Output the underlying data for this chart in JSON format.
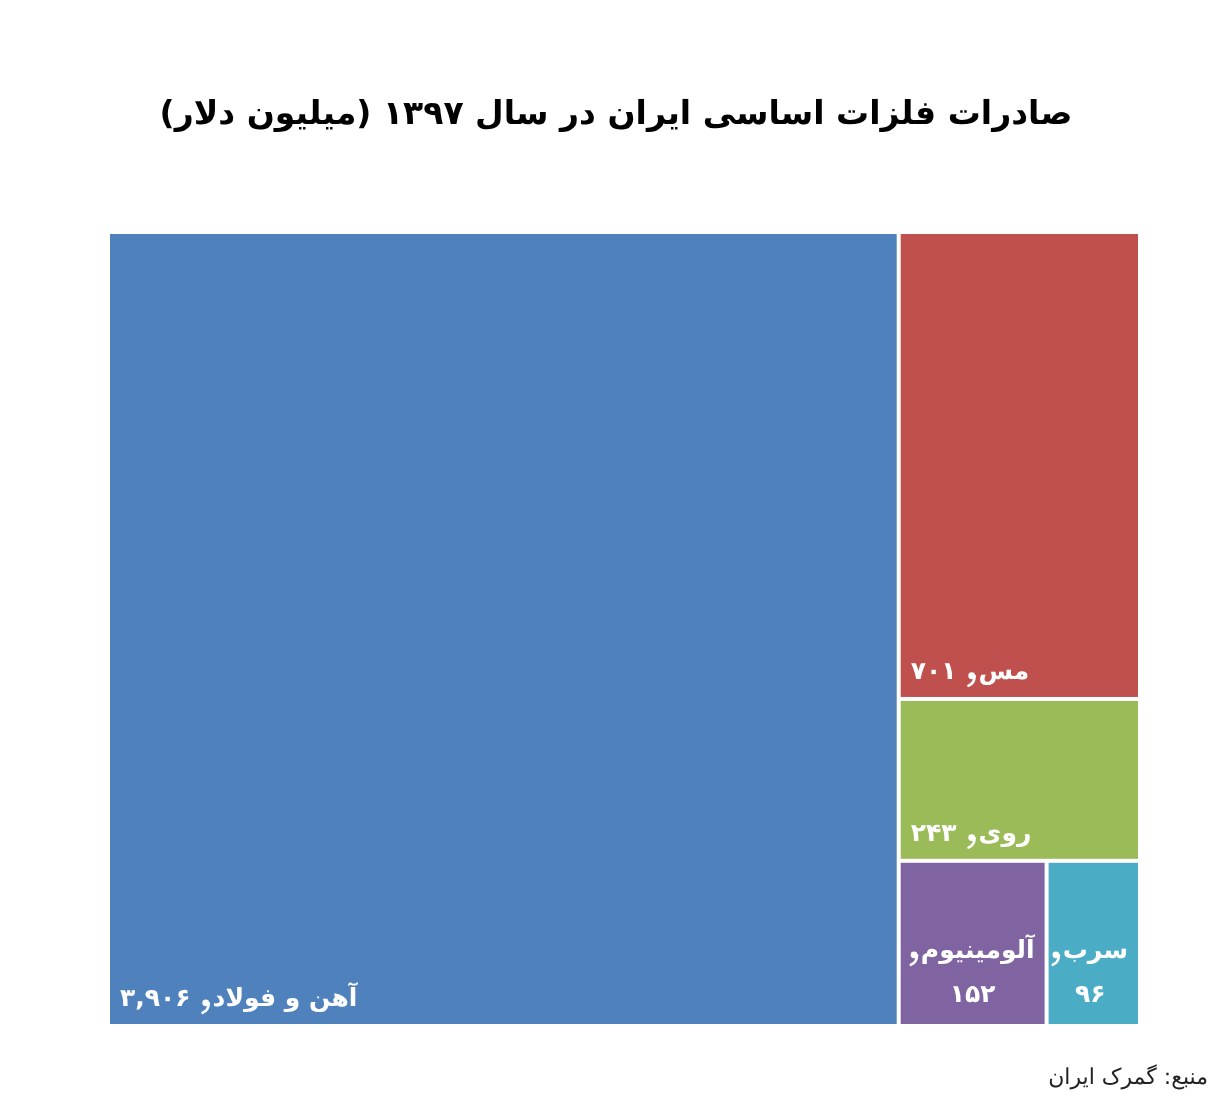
{
  "chart_data": {
    "type": "other",
    "title": "صادرات فلزات اساسی ایران در سال ۱۳۹۷ (میلیون دلار)",
    "categories": [
      "آهن و فولاد",
      "مس",
      "روی",
      "آلومینیوم",
      "سرب"
    ],
    "values": [
      3906,
      701,
      243,
      152,
      96
    ],
    "value_labels": [
      "۳,۹۰۶",
      "۷۰۱",
      "۲۴۳",
      "۱۵۲",
      "۹۶"
    ],
    "colors": [
      "#4f81bd",
      "#c0504d",
      "#9bbb59",
      "#8064a2",
      "#4bacc6"
    ],
    "annotations": [
      "منبع: گمرک ایران"
    ]
  }
}
